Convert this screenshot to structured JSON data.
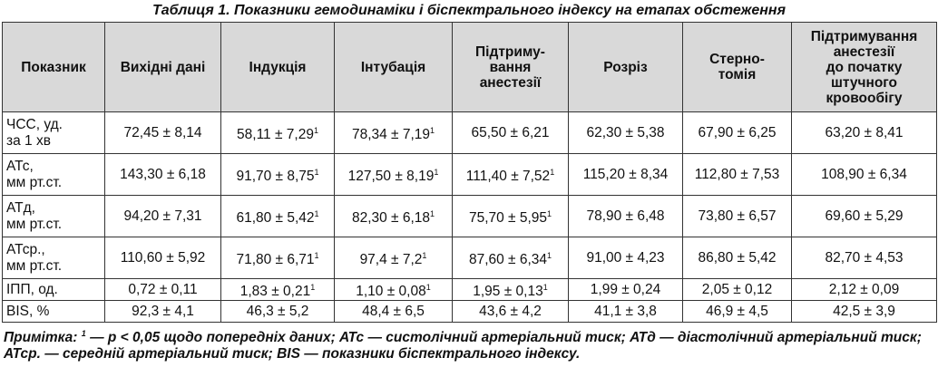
{
  "title": "Таблиця 1. Показники гемодинаміки і біспектрального індексу на етапах обстеження",
  "table": {
    "header": [
      "Показник",
      "Вихідні дані",
      "Індукція",
      "Інтубація",
      "Підтриму-\nвання\nанестезії",
      "Розріз",
      "Стерно-\nтомія",
      "Підтримування\nанестезії\nдо початку\nштучного\nкровообігу"
    ],
    "rows": [
      {
        "label": "ЧСС, уд.\nза 1 хв",
        "cells": [
          "72,45 ± 8,14",
          {
            "value": "58,11 ± 7,29",
            "note": "1"
          },
          {
            "value": "78,34 ± 7,19",
            "note": "1"
          },
          "65,50 ± 6,21",
          "62,30 ± 5,38",
          "67,90 ± 6,25",
          "63,20 ± 8,41"
        ]
      },
      {
        "label": "АТс,\nмм рт.ст.",
        "cells": [
          "143,30 ± 6,18",
          {
            "value": "91,70 ± 8,75",
            "note": "1"
          },
          {
            "value": "127,50 ± 8,19",
            "note": "1"
          },
          {
            "value": "111,40 ± 7,52",
            "note": "1"
          },
          "115,20 ± 8,34",
          "112,80 ± 7,53",
          "108,90 ± 6,34"
        ]
      },
      {
        "label": "АТд,\nмм рт.ст.",
        "cells": [
          "94,20 ± 7,31",
          {
            "value": "61,80 ± 5,42",
            "note": "1"
          },
          {
            "value": "82,30 ± 6,18",
            "note": "1"
          },
          {
            "value": "75,70 ± 5,95",
            "note": "1"
          },
          "78,90 ± 6,48",
          "73,80 ± 6,57",
          "69,60 ± 5,29"
        ]
      },
      {
        "label": "АТср.,\nмм рт.ст.",
        "cells": [
          "110,60 ± 5,92",
          {
            "value": "71,80 ± 6,71",
            "note": "1"
          },
          {
            "value": "97,4 ± 7,2",
            "note": "1"
          },
          {
            "value": "87,60 ± 6,34",
            "note": "1"
          },
          "91,00 ± 4,23",
          "86,80 ± 5,42",
          "82,70 ± 4,53"
        ]
      },
      {
        "label": "ІПП, од.",
        "cells": [
          "0,72 ± 0,11",
          {
            "value": "1,83 ± 0,21",
            "note": "1"
          },
          {
            "value": "1,10 ± 0,08",
            "note": "1"
          },
          {
            "value": "1,95 ± 0,13",
            "note": "1"
          },
          "1,99 ± 0,24",
          "2,05 ± 0,12",
          "2,12 ± 0,09"
        ]
      },
      {
        "label": "BIS, %",
        "cells": [
          "92,3 ± 4,1",
          "46,3 ± 5,2",
          "48,4 ± 6,5",
          "43,6 ± 4,2",
          "41,1 ± 3,8",
          "46,9 ± 4,5",
          "42,5 ± 3,9"
        ]
      }
    ]
  },
  "footnote": {
    "label": "Примітка:",
    "note": "1",
    "text": " — p < 0,05 щодо попередніх даних; АТс — систолічний артеріальний тиск; АТд — діастолічний артеріальний тиск; АТср. — середній артеріальний тиск; BIS — показники біспектрального індексу."
  }
}
